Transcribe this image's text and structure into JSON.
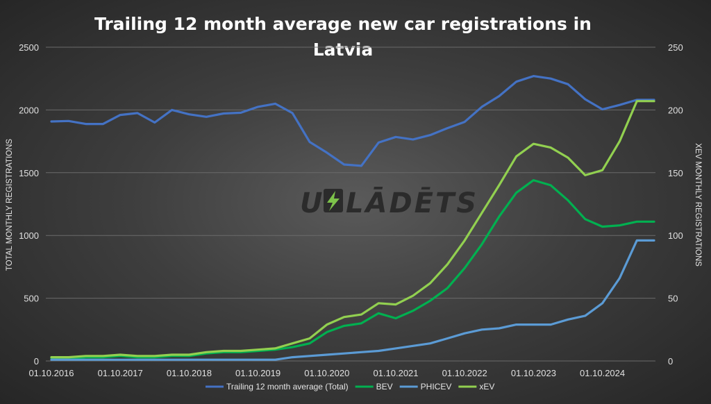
{
  "chart_data": {
    "type": "line",
    "title_line1": "Trailing 12 month average new car registrations in",
    "title_line2": "Latvia",
    "ylabel_left": "TOTAL MONTHLY REGISTRATIONS",
    "ylabel_right": "XEV MONTHLY REGISTRATIONS",
    "ylim_left": [
      0,
      2500
    ],
    "ylim_right": [
      0,
      250
    ],
    "yticks_left": [
      "0",
      "500",
      "1000",
      "1500",
      "2000",
      "2500"
    ],
    "yticks_right": [
      "0",
      "50",
      "100",
      "150",
      "200",
      "250"
    ],
    "x_tick_labels": [
      "01.10.2016",
      "01.10.2017",
      "01.10.2018",
      "01.10.2019",
      "01.10.2020",
      "01.10.2021",
      "01.10.2022",
      "01.10.2023",
      "01.10.2024"
    ],
    "x_count": 36,
    "watermark": "UZLĀDĒTS",
    "legend_position": "bottom",
    "grid": true,
    "series": [
      {
        "name": "Trailing 12 month average (Total)",
        "axis": "left",
        "color": "#4472c4",
        "values": [
          1908,
          1912,
          1888,
          1888,
          1960,
          1975,
          1900,
          2000,
          1965,
          1945,
          1972,
          1978,
          2025,
          2050,
          1975,
          1745,
          1660,
          1565,
          1555,
          1740,
          1785,
          1765,
          1800,
          1855,
          1905,
          2025,
          2110,
          2225,
          2270,
          2250,
          2205,
          2085,
          2005,
          2040,
          2080,
          2080
        ]
      },
      {
        "name": "BEV",
        "axis": "right",
        "color": "#00b050",
        "values": [
          2,
          2,
          3,
          3,
          4,
          3,
          3,
          4,
          4,
          6,
          7,
          7,
          8,
          9,
          11,
          14,
          23,
          28,
          30,
          38,
          34,
          40,
          48,
          58,
          74,
          93,
          115,
          134,
          144,
          140,
          128,
          113,
          107,
          108,
          111,
          111
        ]
      },
      {
        "name": "PHICEV",
        "axis": "right",
        "color": "#5b9bd5",
        "values": [
          1,
          1,
          1,
          1,
          1,
          1,
          1,
          1,
          1,
          1,
          1,
          1,
          1,
          1,
          3,
          4,
          5,
          6,
          7,
          8,
          10,
          12,
          14,
          18,
          22,
          25,
          26,
          29,
          29,
          29,
          33,
          36,
          46,
          66,
          96,
          96
        ]
      },
      {
        "name": "xEV",
        "axis": "right",
        "color": "#92d050",
        "values": [
          3,
          3,
          4,
          4,
          5,
          4,
          4,
          5,
          5,
          7,
          8,
          8,
          9,
          10,
          14,
          18,
          29,
          35,
          37,
          46,
          45,
          52,
          62,
          77,
          96,
          118,
          140,
          163,
          173,
          170,
          162,
          148,
          152,
          175,
          207,
          207
        ]
      }
    ]
  }
}
